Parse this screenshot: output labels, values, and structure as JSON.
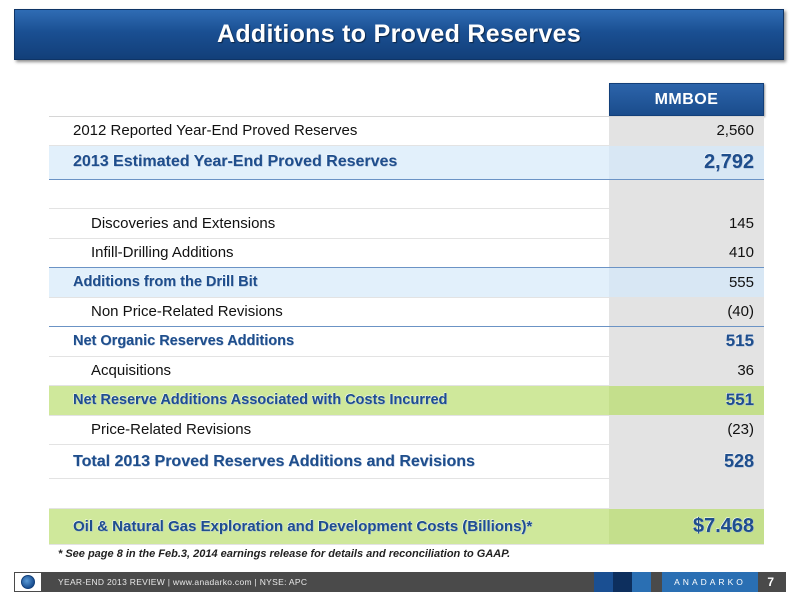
{
  "title": "Additions to Proved Reserves",
  "table": {
    "column_header": "MMBOE",
    "rows": [
      {
        "label": "2012 Reported Year-End Proved Reserves",
        "value": "2,560"
      },
      {
        "label": "2013 Estimated Year-End Proved Reserves",
        "value": "2,792"
      },
      {
        "label": "",
        "value": ""
      },
      {
        "label": "Discoveries and Extensions",
        "value": "145"
      },
      {
        "label": "Infill-Drilling Additions",
        "value": "410"
      },
      {
        "label": "Additions from the Drill Bit",
        "value": "555"
      },
      {
        "label": "Non Price-Related Revisions",
        "value": "(40)"
      },
      {
        "label": "Net Organic Reserves Additions",
        "value": "515"
      },
      {
        "label": "Acquisitions",
        "value": "36"
      },
      {
        "label": "Net Reserve Additions Associated with Costs Incurred",
        "value": "551"
      },
      {
        "label": "Price-Related Revisions",
        "value": "(23)"
      },
      {
        "label": "Total 2013 Proved Reserves Additions and Revisions",
        "value": "528"
      },
      {
        "label": "",
        "value": ""
      },
      {
        "label": "Oil & Natural Gas Exploration and Development Costs (Billions)*",
        "value": "$7.468"
      }
    ]
  },
  "footnote": "* See page 8 in the Feb.3, 2014 earnings release for details and reconciliation to GAAP.",
  "footer": {
    "text": "YEAR-END 2013 REVIEW | www.anadarko.com | NYSE: APC",
    "brand": "ANADARKO",
    "page_number": "7",
    "square_colors": [
      "#1a4f92",
      "#0d2f5e",
      "#2a6fb3"
    ]
  },
  "colors": {
    "title_blue": "#1a4f92",
    "highlight_blue": "#e2f0fb",
    "highlight_green": "#cfe89b",
    "value_cell_gray": "#e3e3e3"
  }
}
